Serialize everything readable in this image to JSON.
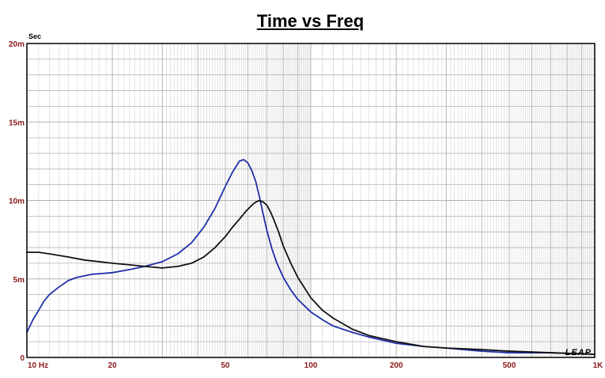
{
  "chart_data": {
    "type": "line",
    "title": "Time vs Freq",
    "ylabel": "Sec",
    "x_scale": "log",
    "xlim": [
      10,
      1000
    ],
    "ylim": [
      0,
      0.02
    ],
    "x_ticks": [
      {
        "value": 10,
        "label": "10  Hz"
      },
      {
        "value": 20,
        "label": "20"
      },
      {
        "value": 50,
        "label": "50"
      },
      {
        "value": 100,
        "label": "100"
      },
      {
        "value": 200,
        "label": "200"
      },
      {
        "value": 500,
        "label": "500"
      },
      {
        "value": 1000,
        "label": "1K"
      }
    ],
    "y_ticks": [
      {
        "value": 0,
        "label": "0"
      },
      {
        "value": 0.005,
        "label": "5m"
      },
      {
        "value": 0.01,
        "label": "10m"
      },
      {
        "value": 0.015,
        "label": "15m"
      },
      {
        "value": 0.02,
        "label": "20m"
      }
    ],
    "grid": true,
    "watermark": "LEAP",
    "colors": {
      "blue_series": "#1f2fa8",
      "black_series": "#111111",
      "tick_labels": "#8b1a1a",
      "grid": "#b4b4b4"
    },
    "series": [
      {
        "color": "#1f2fa8",
        "x": [
          10,
          10.5,
          11,
          11.5,
          12,
          13,
          14,
          15,
          17,
          20,
          23,
          26,
          30,
          34,
          38,
          42,
          46,
          50,
          53,
          56,
          58,
          60,
          62,
          64,
          66,
          68,
          70,
          73,
          76,
          80,
          85,
          90,
          100,
          110,
          120,
          140,
          160,
          200,
          250,
          300,
          400,
          500,
          700,
          1000
        ],
        "y": [
          0.0016,
          0.0024,
          0.003,
          0.0036,
          0.004,
          0.0045,
          0.0049,
          0.0051,
          0.0053,
          0.0054,
          0.0056,
          0.0058,
          0.0061,
          0.0066,
          0.0073,
          0.0083,
          0.0095,
          0.0109,
          0.0118,
          0.0125,
          0.0126,
          0.0124,
          0.0119,
          0.0112,
          0.0102,
          0.0091,
          0.0081,
          0.0069,
          0.006,
          0.0051,
          0.0043,
          0.0037,
          0.0029,
          0.0024,
          0.002,
          0.0016,
          0.0013,
          0.0009,
          0.0007,
          0.0006,
          0.0004,
          0.0003,
          0.0003,
          0.0002
        ]
      },
      {
        "color": "#111111",
        "x": [
          10,
          11,
          12,
          14,
          16,
          18,
          20,
          23,
          26,
          30,
          34,
          38,
          42,
          46,
          50,
          53,
          56,
          59,
          62,
          64,
          66,
          68,
          70,
          72,
          74,
          77,
          80,
          85,
          90,
          100,
          110,
          120,
          140,
          160,
          200,
          250,
          300,
          400,
          500,
          700,
          1000
        ],
        "y": [
          0.0067,
          0.0067,
          0.0066,
          0.0064,
          0.0062,
          0.0061,
          0.006,
          0.0059,
          0.0058,
          0.0057,
          0.0058,
          0.006,
          0.0064,
          0.007,
          0.0077,
          0.0083,
          0.0088,
          0.0093,
          0.0097,
          0.0099,
          0.01,
          0.0099,
          0.0097,
          0.0093,
          0.0088,
          0.008,
          0.0071,
          0.006,
          0.0051,
          0.0038,
          0.003,
          0.0025,
          0.0018,
          0.0014,
          0.001,
          0.0007,
          0.0006,
          0.0005,
          0.0004,
          0.0003,
          0.0002
        ]
      }
    ]
  }
}
